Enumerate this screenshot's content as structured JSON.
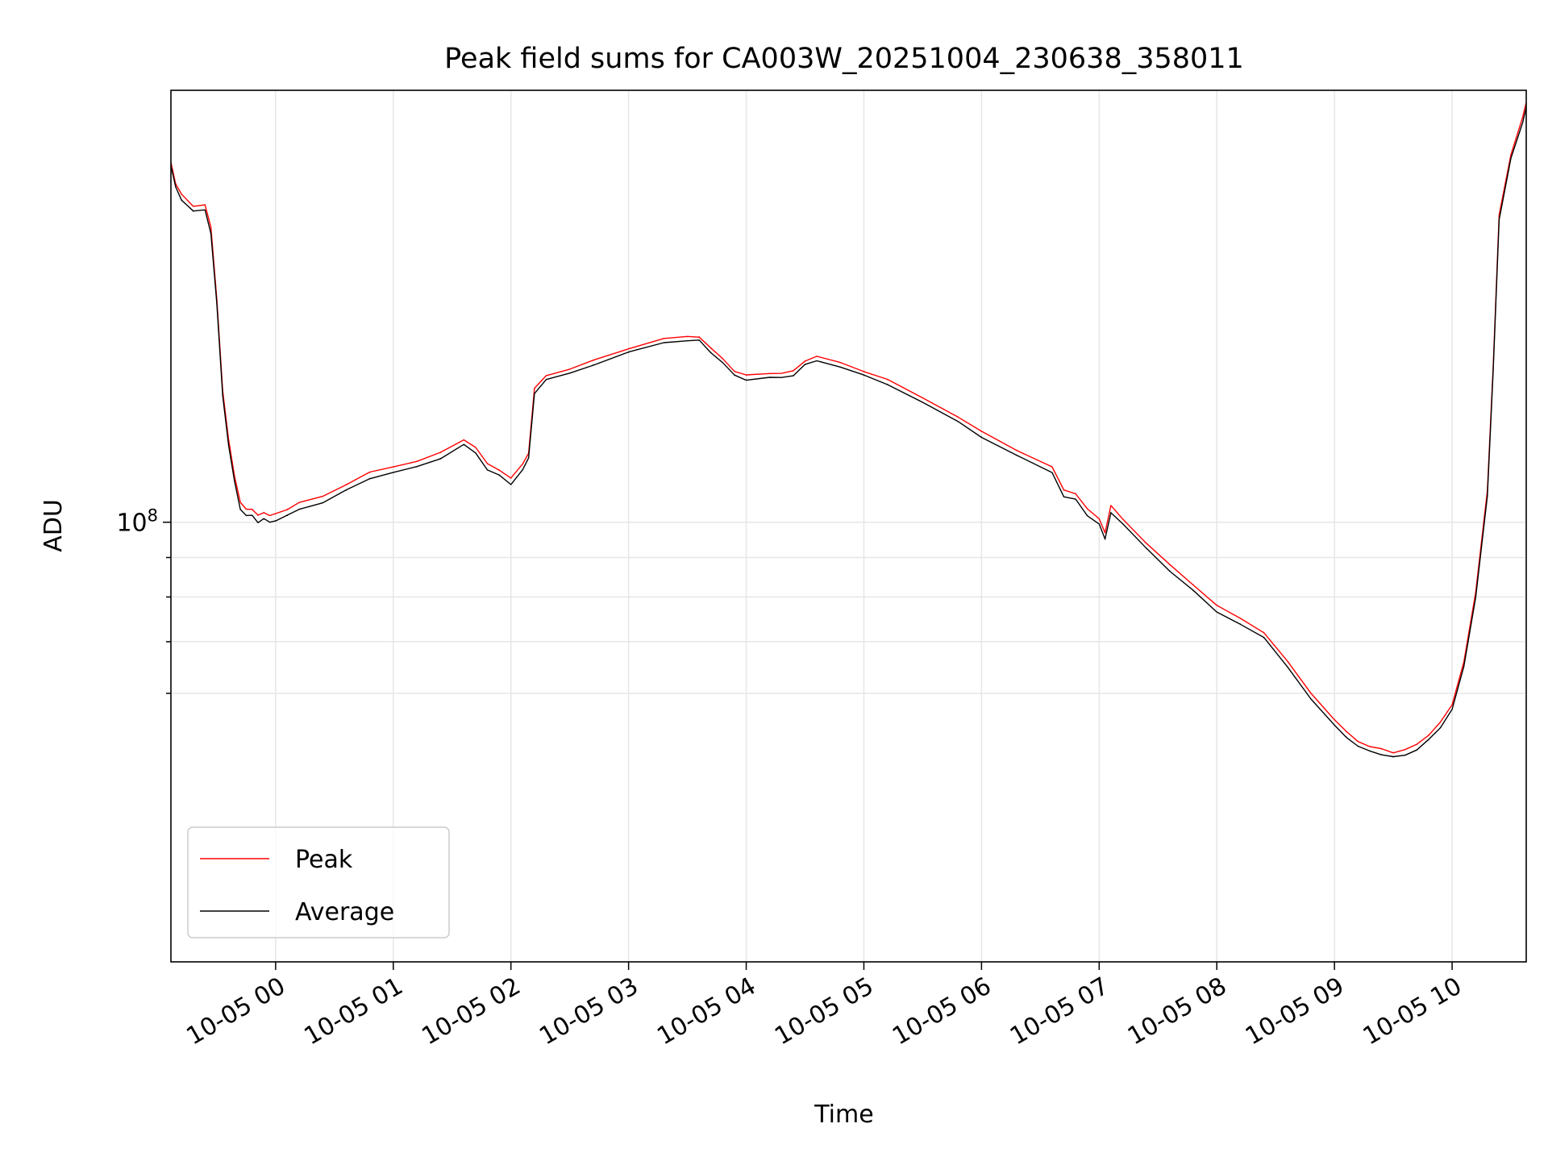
{
  "chart_data": {
    "type": "line",
    "title": "Peak field sums for CA003W_20251004_230638_358011",
    "xlabel": "Time",
    "ylabel": "ADU",
    "yscale": "log",
    "grid": true,
    "legend_position": "lower-left",
    "x_unit": "hours since 10-05 00:00",
    "xlim": [
      -0.89,
      10.63
    ],
    "ylim_log10": [
      7.43,
      8.56
    ],
    "x_ticks": [
      0,
      1,
      2,
      3,
      4,
      5,
      6,
      7,
      8,
      9,
      10
    ],
    "x_tick_labels": [
      "10-05 00",
      "10-05 01",
      "10-05 02",
      "10-05 03",
      "10-05 04",
      "10-05 05",
      "10-05 06",
      "10-05 07",
      "10-05 08",
      "10-05 09",
      "10-05 10"
    ],
    "y_major_tick": {
      "value": 100000000,
      "label_base": "10",
      "label_exp": "8"
    },
    "y_minor_ticks": [
      60000000,
      70000000,
      80000000,
      90000000
    ],
    "series": [
      {
        "name": "Peak",
        "color": "#ff0000",
        "x": [
          -0.89,
          -0.85,
          -0.8,
          -0.7,
          -0.6,
          -0.55,
          -0.5,
          -0.45,
          -0.4,
          -0.35,
          -0.3,
          -0.25,
          -0.2,
          -0.15,
          -0.1,
          -0.05,
          0.0,
          0.1,
          0.2,
          0.4,
          0.6,
          0.8,
          1.0,
          1.2,
          1.4,
          1.6,
          1.7,
          1.8,
          1.9,
          2.0,
          2.1,
          2.15,
          2.2,
          2.3,
          2.5,
          2.7,
          3.0,
          3.3,
          3.5,
          3.6,
          3.7,
          3.8,
          3.9,
          4.0,
          4.2,
          4.3,
          4.4,
          4.5,
          4.6,
          4.8,
          5.0,
          5.2,
          5.5,
          5.8,
          6.0,
          6.3,
          6.6,
          6.7,
          6.8,
          6.9,
          7.0,
          7.05,
          7.1,
          7.2,
          7.4,
          7.6,
          7.8,
          8.0,
          8.2,
          8.4,
          8.6,
          8.8,
          9.0,
          9.1,
          9.2,
          9.3,
          9.4,
          9.5,
          9.6,
          9.7,
          9.8,
          9.9,
          10.0,
          10.1,
          10.2,
          10.3,
          10.35,
          10.4,
          10.5,
          10.6,
          10.63
        ],
        "values": [
          293000000.0,
          275000000.0,
          266000000.0,
          257000000.0,
          258000000.0,
          241000000.0,
          195000000.0,
          148000000.0,
          128000000.0,
          115000000.0,
          106000000.0,
          104000000.0,
          104000000.0,
          102000000.0,
          103000000.0,
          102000000.0,
          102500000.0,
          104000000.0,
          106000000.0,
          108000000.0,
          112000000.0,
          116000000.0,
          118000000.0,
          120000000.0,
          123000000.0,
          128000000.0,
          125000000.0,
          119000000.0,
          117000000.0,
          114000000.0,
          119000000.0,
          123000000.0,
          149000000.0,
          155000000.0,
          158000000.0,
          162000000.0,
          168000000.0,
          173000000.0,
          174000000.0,
          174000000.0,
          168000000.0,
          163000000.0,
          157000000.0,
          155000000.0,
          156000000.0,
          156000000.0,
          157000000.0,
          162000000.0,
          164000000.0,
          161000000.0,
          157000000.0,
          153000000.0,
          145000000.0,
          137000000.0,
          131000000.0,
          124000000.0,
          118000000.0,
          110000000.0,
          109000000.0,
          104000000.0,
          101000000.0,
          97000000.0,
          105000000.0,
          101000000.0,
          94000000.0,
          88000000.0,
          83000000.0,
          78000000.0,
          75000000.0,
          72000000.0,
          66000000.0,
          60000000.0,
          55500000.0,
          53500000.0,
          52000000.0,
          51200000.0,
          50800000.0,
          50300000.0,
          50700000.0,
          51500000.0,
          53000000.0,
          55000000.0,
          58000000.0,
          66000000.0,
          81000000.0,
          110000000.0,
          160000000.0,
          250000000.0,
          300000000.0,
          335000000.0,
          350000000.0
        ]
      },
      {
        "name": "Average",
        "color": "#000000",
        "x": [
          -0.89,
          -0.85,
          -0.8,
          -0.7,
          -0.6,
          -0.55,
          -0.5,
          -0.45,
          -0.4,
          -0.35,
          -0.3,
          -0.25,
          -0.2,
          -0.15,
          -0.1,
          -0.05,
          0.0,
          0.1,
          0.2,
          0.4,
          0.6,
          0.8,
          1.0,
          1.2,
          1.4,
          1.6,
          1.7,
          1.8,
          1.9,
          2.0,
          2.1,
          2.15,
          2.2,
          2.3,
          2.5,
          2.7,
          3.0,
          3.3,
          3.5,
          3.6,
          3.7,
          3.8,
          3.9,
          4.0,
          4.2,
          4.3,
          4.4,
          4.5,
          4.6,
          4.8,
          5.0,
          5.2,
          5.5,
          5.8,
          6.0,
          6.3,
          6.6,
          6.7,
          6.8,
          6.9,
          7.0,
          7.05,
          7.1,
          7.2,
          7.4,
          7.6,
          7.8,
          8.0,
          8.2,
          8.4,
          8.6,
          8.8,
          9.0,
          9.1,
          9.2,
          9.3,
          9.4,
          9.5,
          9.6,
          9.7,
          9.8,
          9.9,
          10.0,
          10.1,
          10.2,
          10.3,
          10.35,
          10.4,
          10.5,
          10.6,
          10.63
        ],
        "values": [
          290000000.0,
          272000000.0,
          262000000.0,
          253000000.0,
          254000000.0,
          237000000.0,
          192000000.0,
          146000000.0,
          126000000.0,
          113000000.0,
          104000000.0,
          102000000.0,
          102000000.0,
          100000000.0,
          101000000.0,
          100000000.0,
          100500000.0,
          102000000.0,
          104000000.0,
          106000000.0,
          110000000.0,
          114000000.0,
          116000000.0,
          118000000.0,
          121000000.0,
          126000000.0,
          123000000.0,
          117000000.0,
          115000000.0,
          112000000.0,
          117000000.0,
          121000000.0,
          147000000.0,
          153000000.0,
          156000000.0,
          160000000.0,
          166000000.0,
          171000000.0,
          172000000.0,
          172000000.0,
          166000000.0,
          161000000.0,
          155000000.0,
          153000000.0,
          154000000.0,
          154000000.0,
          155000000.0,
          160000000.0,
          162000000.0,
          159000000.0,
          155000000.0,
          151000000.0,
          143000000.0,
          135000000.0,
          129000000.0,
          122000000.0,
          116000000.0,
          108000000.0,
          107000000.0,
          102000000.0,
          99500000.0,
          95000000.0,
          103000000.0,
          99500000.0,
          92500000.0,
          86500000.0,
          81500000.0,
          76500000.0,
          73800000.0,
          70800000.0,
          65000000.0,
          59000000.0,
          54500000.0,
          52700000.0,
          51200000.0,
          50500000.0,
          50000000.0,
          49600000.0,
          49900000.0,
          50700000.0,
          52200000.0,
          54200000.0,
          57200000.0,
          65000000.0,
          80000000.0,
          108000000.0,
          158000000.0,
          247000000.0,
          296000000.0,
          330000000.0,
          345000000.0
        ]
      }
    ]
  }
}
